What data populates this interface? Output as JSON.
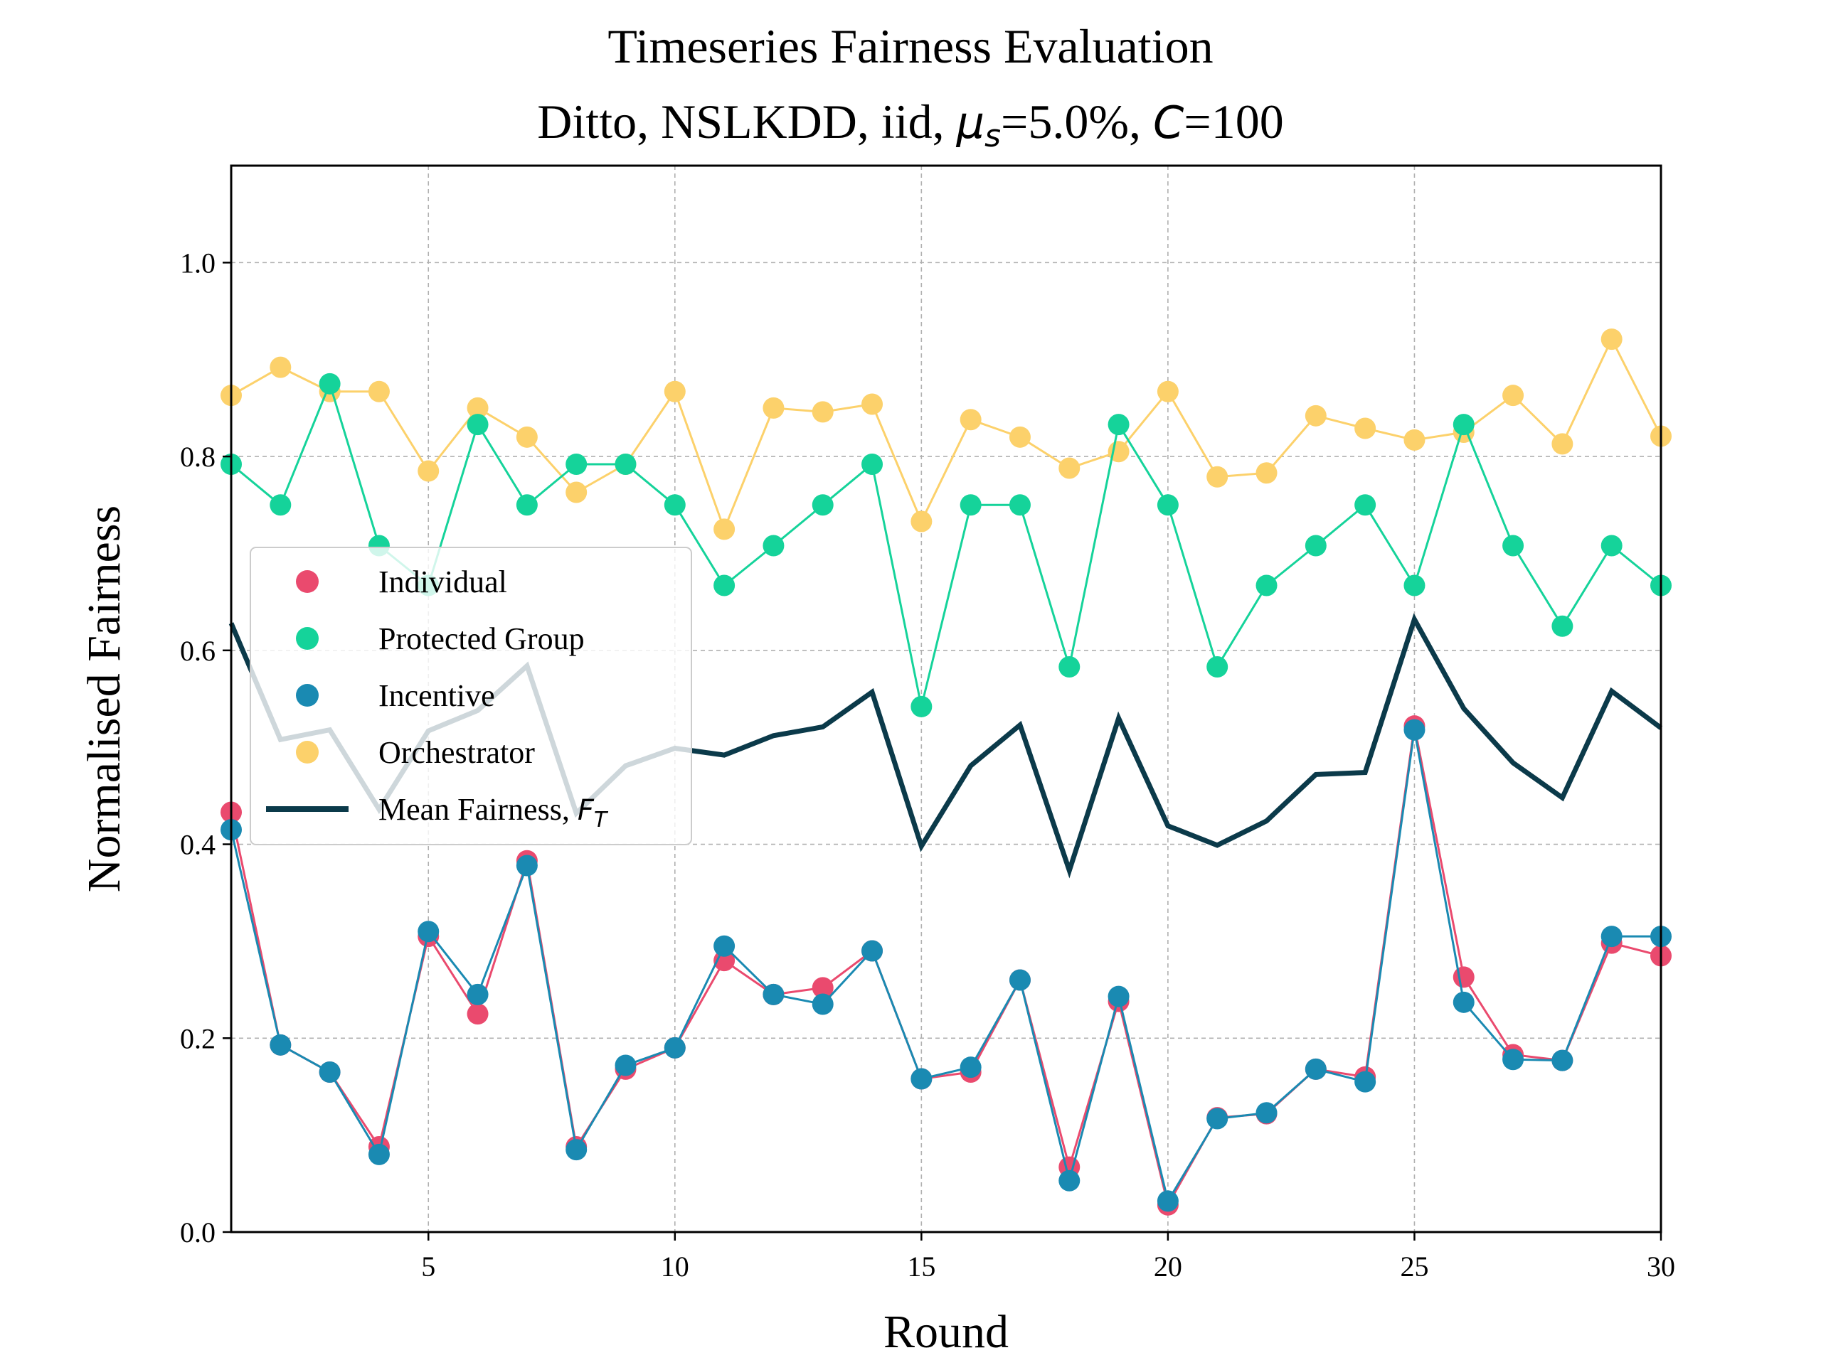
{
  "chart_data": {
    "type": "line",
    "title": "Timeseries Fairness Evaluation",
    "subtitle": {
      "prefix": "Ditto, NSLKDD, iid, ",
      "mu_symbol": "μ",
      "mu_sub": "s",
      "mu_value": "=5.0%, ",
      "c_symbol": "C",
      "c_value": "=100"
    },
    "xlabel": "Round",
    "ylabel": "Normalised Fairness",
    "xlim": [
      1,
      30
    ],
    "ylim": [
      0,
      1.1
    ],
    "x_ticks": [
      5,
      10,
      15,
      20,
      25,
      30
    ],
    "y_ticks": [
      0.0,
      0.2,
      0.4,
      0.6,
      0.8,
      1.0
    ],
    "x_tick_labels": [
      "5",
      "10",
      "15",
      "20",
      "25",
      "30"
    ],
    "y_tick_labels": [
      "0.0",
      "0.2",
      "0.4",
      "0.6",
      "0.8",
      "1.0"
    ],
    "grid": true,
    "legend_position": "center-left",
    "x": [
      1,
      2,
      3,
      4,
      5,
      6,
      7,
      8,
      9,
      10,
      11,
      12,
      13,
      14,
      15,
      16,
      17,
      18,
      19,
      20,
      21,
      22,
      23,
      24,
      25,
      26,
      27,
      28,
      29,
      30
    ],
    "series": [
      {
        "name": "Individual",
        "color": "#ea4a6e",
        "style": "markers",
        "values": [
          0.433,
          0.193,
          0.165,
          0.088,
          0.305,
          0.225,
          0.383,
          0.088,
          0.168,
          0.19,
          0.28,
          0.245,
          0.252,
          0.29,
          0.158,
          0.165,
          0.26,
          0.067,
          0.238,
          0.028,
          0.118,
          0.122,
          0.168,
          0.16,
          0.522,
          0.263,
          0.183,
          0.177,
          0.298,
          0.285
        ]
      },
      {
        "name": "Protected Group",
        "color": "#15d39a",
        "style": "markers",
        "values": [
          0.792,
          0.75,
          0.875,
          0.708,
          0.667,
          0.833,
          0.75,
          0.792,
          0.792,
          0.75,
          0.667,
          0.708,
          0.75,
          0.792,
          0.542,
          0.75,
          0.75,
          0.583,
          0.833,
          0.75,
          0.583,
          0.667,
          0.708,
          0.75,
          0.667,
          0.833,
          0.708,
          0.625,
          0.708,
          0.667
        ]
      },
      {
        "name": "Incentive",
        "color": "#1a8ab2",
        "style": "markers",
        "values": [
          0.415,
          0.193,
          0.165,
          0.08,
          0.31,
          0.245,
          0.378,
          0.085,
          0.172,
          0.19,
          0.295,
          0.245,
          0.235,
          0.29,
          0.158,
          0.17,
          0.26,
          0.053,
          0.243,
          0.032,
          0.117,
          0.123,
          0.168,
          0.155,
          0.518,
          0.237,
          0.178,
          0.177,
          0.305,
          0.305
        ]
      },
      {
        "name": "Orchestrator",
        "color": "#fcd16b",
        "style": "markers",
        "values": [
          0.863,
          0.892,
          0.867,
          0.867,
          0.785,
          0.85,
          0.82,
          0.763,
          0.792,
          0.867,
          0.725,
          0.85,
          0.846,
          0.854,
          0.733,
          0.838,
          0.82,
          0.788,
          0.805,
          0.867,
          0.779,
          0.783,
          0.842,
          0.829,
          0.817,
          0.825,
          0.863,
          0.813,
          0.921,
          0.821
        ]
      },
      {
        "name": "Mean Fairness, F_T",
        "color": "#0b3a4a",
        "style": "line",
        "values": [
          0.628,
          0.508,
          0.518,
          0.436,
          0.517,
          0.538,
          0.584,
          0.432,
          0.481,
          0.499,
          0.492,
          0.512,
          0.521,
          0.557,
          0.398,
          0.481,
          0.523,
          0.373,
          0.53,
          0.419,
          0.399,
          0.424,
          0.472,
          0.474,
          0.632,
          0.54,
          0.484,
          0.448,
          0.558,
          0.52
        ]
      }
    ],
    "legend": {
      "entries": [
        {
          "label": "Individual",
          "color": "#ea4a6e",
          "kind": "marker"
        },
        {
          "label": "Protected Group",
          "color": "#15d39a",
          "kind": "marker"
        },
        {
          "label": "Incentive",
          "color": "#1a8ab2",
          "kind": "marker"
        },
        {
          "label": "Orchestrator",
          "color": "#fcd16b",
          "kind": "marker"
        },
        {
          "label": "Mean Fairness, ",
          "label_symbol": "F",
          "label_sub": "T",
          "color": "#0b3a4a",
          "kind": "line"
        }
      ]
    }
  }
}
